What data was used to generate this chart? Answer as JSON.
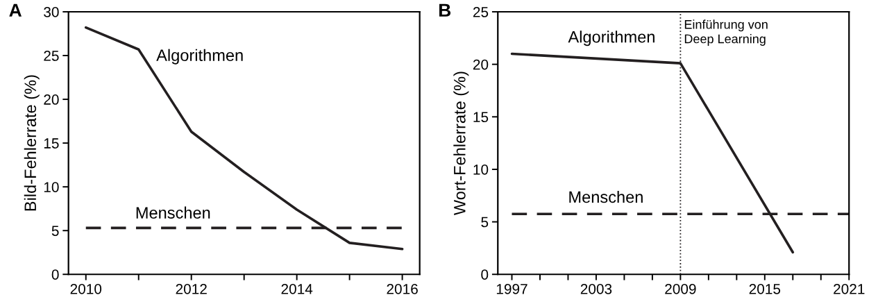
{
  "chart_data": [
    {
      "type": "line",
      "ylabel": "Bild-Fehlerrate (%)",
      "annotations": [
        "A"
      ],
      "xlim": [
        2009.67,
        2016.33
      ],
      "ylim": [
        0,
        30
      ],
      "xticks": [
        2010,
        {
          "value": 2011,
          "label": null
        },
        2012,
        {
          "value": 2013,
          "label": null
        },
        2014,
        {
          "value": 2015,
          "label": null
        },
        2016
      ],
      "yticks": [
        0,
        5,
        10,
        15,
        20,
        25,
        30
      ],
      "grid": false,
      "legend": false,
      "marker": "none",
      "series": [
        {
          "name": "Algorithmen",
          "color": "#231f20",
          "line_style": "solid",
          "x": [
            2010,
            2011,
            2012,
            2013,
            2014,
            2015,
            2016
          ],
          "values": [
            28.2,
            25.7,
            16.3,
            11.7,
            7.4,
            3.6,
            2.9
          ]
        },
        {
          "name": "Menschen",
          "color": "#231f20",
          "line_style": "dashed",
          "x": [
            2010,
            2016
          ],
          "values": [
            5.3,
            5.3
          ]
        }
      ]
    },
    {
      "type": "line",
      "ylabel": "Wort-Fehlerrate (%)",
      "annotations": [
        "B"
      ],
      "xlim": [
        1996,
        2021
      ],
      "ylim": [
        0,
        25
      ],
      "xticks": [
        1997,
        {
          "value": 1999,
          "label": null
        },
        {
          "value": 2001,
          "label": null
        },
        2003,
        {
          "value": 2005,
          "label": null
        },
        {
          "value": 2007,
          "label": null
        },
        2009,
        {
          "value": 2011,
          "label": null
        },
        {
          "value": 2013,
          "label": null
        },
        2015,
        {
          "value": 2017,
          "label": null
        },
        {
          "value": 2019,
          "label": null
        },
        2021
      ],
      "yticks": [
        0,
        5,
        10,
        15,
        20,
        25
      ],
      "grid": false,
      "legend": false,
      "marker": "none",
      "ref_lines": [
        {
          "axis": "x",
          "value": 2009,
          "label": "Einführung von\nDeep Learning",
          "color": "#231f20",
          "line_style": "dotted"
        }
      ],
      "series": [
        {
          "name": "Algorithmen",
          "color": "#231f20",
          "line_style": "solid",
          "x": [
            1997,
            2009,
            2017
          ],
          "values": [
            21.0,
            20.1,
            2.1
          ]
        },
        {
          "name": "Menschen",
          "color": "#231f20",
          "line_style": "dashed",
          "x": [
            1997,
            2021
          ],
          "values": [
            5.75,
            5.75
          ]
        }
      ]
    }
  ]
}
